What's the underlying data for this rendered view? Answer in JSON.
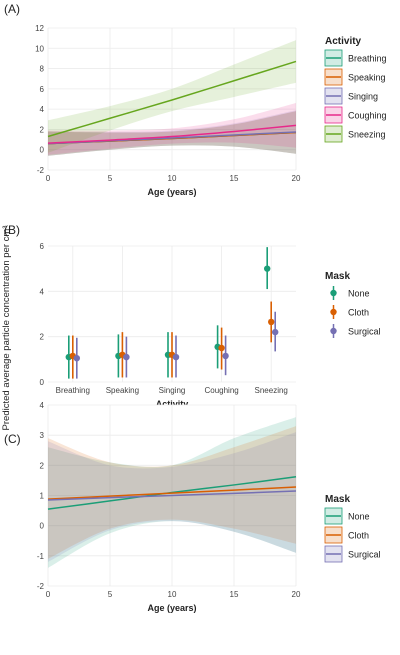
{
  "figure": {
    "ylabel": "Predicted average particle concentration per cm³"
  },
  "chart_data": [
    {
      "panel": "(A)",
      "type": "line",
      "xlabel": "Age (years)",
      "xlim": [
        0,
        20
      ],
      "ylim": [
        -2,
        12
      ],
      "xticks": [
        0,
        5,
        10,
        15,
        20
      ],
      "yticks": [
        -2,
        0,
        2,
        4,
        6,
        8,
        10,
        12
      ],
      "grid": true,
      "legend": {
        "title": "Activity",
        "position": "right"
      },
      "series": [
        {
          "name": "Breathing",
          "color": "#1b9e77",
          "x": [
            0,
            5,
            10,
            15,
            20
          ],
          "y": [
            0.6,
            0.85,
            1.1,
            1.4,
            1.7
          ],
          "lower": [
            -0.6,
            0.0,
            0.4,
            0.3,
            -0.4
          ],
          "upper": [
            1.8,
            1.7,
            1.8,
            2.5,
            3.8
          ]
        },
        {
          "name": "Speaking",
          "color": "#d95f02",
          "x": [
            0,
            5,
            10,
            15,
            20
          ],
          "y": [
            0.6,
            0.85,
            1.1,
            1.4,
            1.7
          ],
          "lower": [
            -0.6,
            0.0,
            0.4,
            0.3,
            -0.4
          ],
          "upper": [
            1.8,
            1.7,
            1.8,
            2.5,
            3.8
          ]
        },
        {
          "name": "Singing",
          "color": "#7570b3",
          "x": [
            0,
            5,
            10,
            15,
            20
          ],
          "y": [
            0.6,
            0.88,
            1.15,
            1.45,
            1.75
          ],
          "lower": [
            -0.6,
            0.0,
            0.4,
            0.3,
            -0.4
          ],
          "upper": [
            1.8,
            1.75,
            1.9,
            2.6,
            3.9
          ]
        },
        {
          "name": "Coughing",
          "color": "#e7298a",
          "x": [
            0,
            5,
            10,
            15,
            20
          ],
          "y": [
            0.65,
            0.95,
            1.3,
            1.8,
            2.4
          ],
          "lower": [
            -0.5,
            0.1,
            0.6,
            0.7,
            0.2
          ],
          "upper": [
            1.9,
            1.9,
            2.1,
            3.0,
            4.6
          ]
        },
        {
          "name": "Sneezing",
          "color": "#66a61e",
          "x": [
            0,
            5,
            10,
            15,
            20
          ],
          "y": [
            1.3,
            3.1,
            4.9,
            6.8,
            8.7
          ],
          "lower": [
            -0.3,
            1.9,
            3.8,
            5.2,
            6.6
          ],
          "upper": [
            2.9,
            4.3,
            6.0,
            8.4,
            10.8
          ]
        }
      ]
    },
    {
      "panel": "(B)",
      "type": "scatter",
      "xlabel": "Activity",
      "categories": [
        "Breathing",
        "Speaking",
        "Singing",
        "Coughing",
        "Sneezing"
      ],
      "ylim": [
        0,
        6
      ],
      "yticks": [
        0,
        2,
        4,
        6
      ],
      "grid": true,
      "legend": {
        "title": "Mask",
        "position": "right"
      },
      "series": [
        {
          "name": "None",
          "color": "#1b9e77",
          "values": [
            1.1,
            1.15,
            1.2,
            1.55,
            5.0
          ],
          "lower": [
            0.15,
            0.2,
            0.2,
            0.6,
            4.1
          ],
          "upper": [
            2.05,
            2.1,
            2.2,
            2.5,
            5.95
          ]
        },
        {
          "name": "Cloth",
          "color": "#d95f02",
          "values": [
            1.15,
            1.2,
            1.2,
            1.5,
            2.65
          ],
          "lower": [
            0.15,
            0.2,
            0.2,
            0.55,
            1.75
          ],
          "upper": [
            2.05,
            2.2,
            2.2,
            2.4,
            3.55
          ]
        },
        {
          "name": "Surgical",
          "color": "#7570b3",
          "values": [
            1.05,
            1.1,
            1.1,
            1.15,
            2.2
          ],
          "lower": [
            0.15,
            0.2,
            0.2,
            0.3,
            1.35
          ],
          "upper": [
            1.95,
            2.0,
            2.05,
            2.05,
            3.1
          ]
        }
      ]
    },
    {
      "panel": "(C)",
      "type": "line",
      "xlabel": "Age (years)",
      "xlim": [
        0,
        20
      ],
      "ylim": [
        -2,
        4
      ],
      "xticks": [
        0,
        5,
        10,
        15,
        20
      ],
      "yticks": [
        -2,
        -1,
        0,
        1,
        2,
        3,
        4
      ],
      "grid": true,
      "legend": {
        "title": "Mask",
        "position": "right"
      },
      "series": [
        {
          "name": "None",
          "color": "#1b9e77",
          "x": [
            0,
            5,
            10,
            15,
            20
          ],
          "y": [
            0.55,
            0.82,
            1.1,
            1.35,
            1.62
          ],
          "lower": [
            -1.4,
            -0.25,
            0.15,
            -0.2,
            -0.9
          ],
          "upper": [
            2.6,
            2.1,
            2.0,
            2.9,
            3.6
          ]
        },
        {
          "name": "Cloth",
          "color": "#d95f02",
          "x": [
            0,
            5,
            10,
            15,
            20
          ],
          "y": [
            0.88,
            0.98,
            1.08,
            1.18,
            1.28
          ],
          "lower": [
            -1.1,
            -0.1,
            0.2,
            -0.1,
            -0.6
          ],
          "upper": [
            2.9,
            2.1,
            2.0,
            2.6,
            3.3
          ]
        },
        {
          "name": "Surgical",
          "color": "#7570b3",
          "x": [
            0,
            5,
            10,
            15,
            20
          ],
          "y": [
            0.85,
            0.93,
            1.0,
            1.07,
            1.15
          ],
          "lower": [
            -1.2,
            -0.15,
            0.15,
            -0.2,
            -0.9
          ],
          "upper": [
            2.8,
            2.0,
            1.95,
            2.4,
            3.1
          ]
        }
      ]
    }
  ]
}
